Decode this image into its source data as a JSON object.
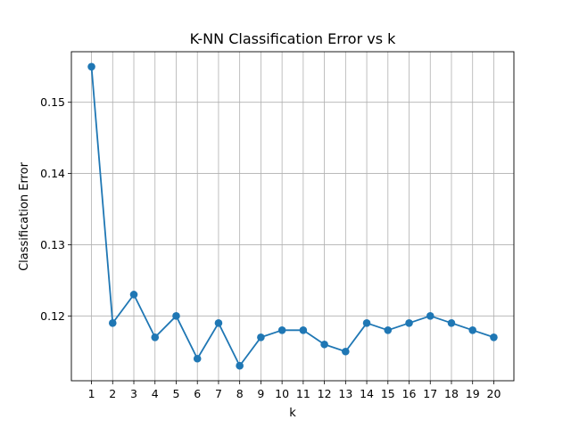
{
  "chart_data": {
    "type": "line",
    "title": "K-NN Classification Error vs k",
    "xlabel": "k",
    "ylabel": "Classification Error",
    "x": [
      1,
      2,
      3,
      4,
      5,
      6,
      7,
      8,
      9,
      10,
      11,
      12,
      13,
      14,
      15,
      16,
      17,
      18,
      19,
      20
    ],
    "series": [
      {
        "values": [
          0.155,
          0.119,
          0.123,
          0.117,
          0.12,
          0.114,
          0.119,
          0.113,
          0.117,
          0.118,
          0.118,
          0.116,
          0.115,
          0.119,
          0.118,
          0.119,
          0.12,
          0.119,
          0.118,
          0.117
        ],
        "color": "#1f77b4",
        "marker": "circle"
      }
    ],
    "x_ticks": [
      "1",
      "2",
      "3",
      "4",
      "5",
      "6",
      "7",
      "8",
      "9",
      "10",
      "11",
      "12",
      "13",
      "14",
      "15",
      "16",
      "17",
      "18",
      "19",
      "20"
    ],
    "y_ticks": [
      0.12,
      0.13,
      0.14,
      0.15
    ],
    "y_tick_labels": [
      "0.12",
      "0.13",
      "0.14",
      "0.15"
    ],
    "xlim": [
      0.05,
      20.95
    ],
    "ylim": [
      0.1109,
      0.1571
    ],
    "grid": true
  }
}
